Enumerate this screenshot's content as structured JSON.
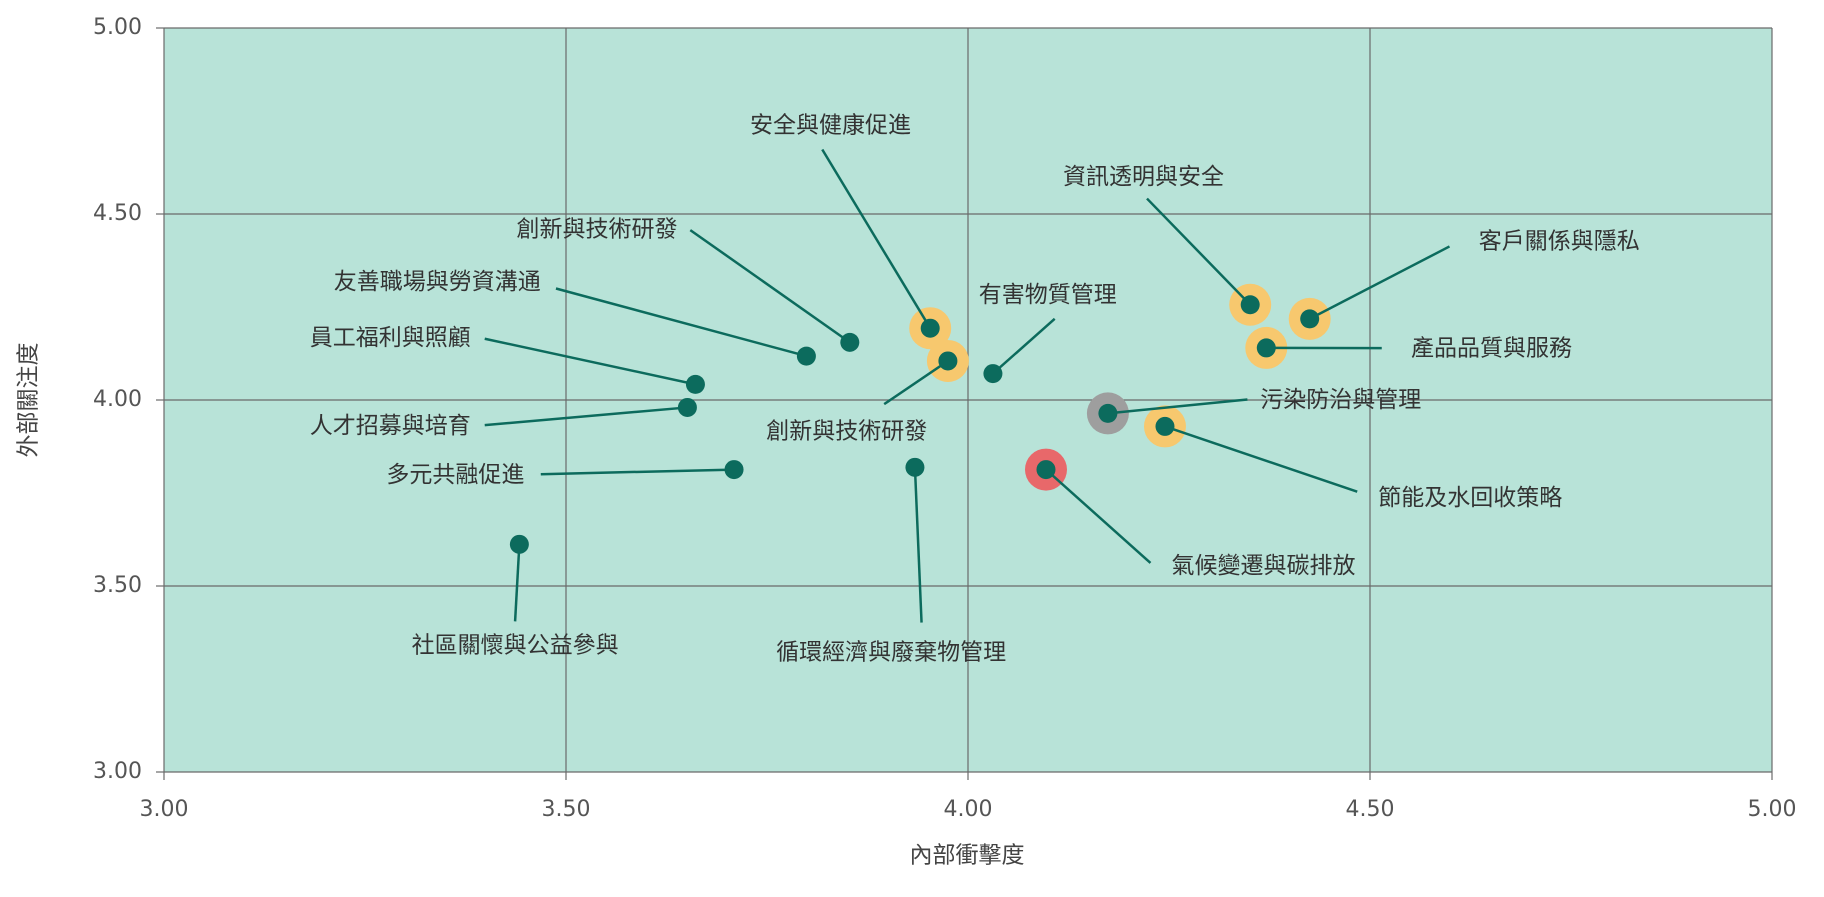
{
  "chart_data": {
    "type": "scatter",
    "x_label": "內部衝擊度",
    "y_label": "外部關注度",
    "xlim": [
      3,
      5
    ],
    "ylim": [
      3,
      5
    ],
    "xticks": [
      {
        "value": 3,
        "label": "3.00"
      },
      {
        "value": 3.5,
        "label": "3.50"
      },
      {
        "value": 4,
        "label": "4.00"
      },
      {
        "value": 4.5,
        "label": "4.50"
      },
      {
        "value": 5,
        "label": "5.00"
      }
    ],
    "yticks": [
      {
        "value": 3,
        "label": "3.00"
      },
      {
        "value": 3.5,
        "label": "3.50"
      },
      {
        "value": 4,
        "label": "4.00"
      },
      {
        "value": 4.5,
        "label": "4.50"
      },
      {
        "value": 5,
        "label": "5.00"
      }
    ],
    "grid": true,
    "background": "#b8e3d8",
    "color": "#0c6b5d",
    "points": [
      {
        "label": "安全與健康促進",
        "x": 3.953,
        "y": 4.193,
        "highlight": "#f7c86e"
      },
      {
        "label": "創新與技術研發",
        "x": 3.853,
        "y": 4.155
      },
      {
        "label": "友善職場與勞資溝通",
        "x": 3.799,
        "y": 4.118
      },
      {
        "label": "員工福利與照顧",
        "x": 3.661,
        "y": 4.042
      },
      {
        "label": "人才招募與培育",
        "x": 3.651,
        "y": 3.98
      },
      {
        "label": "多元共融促進",
        "x": 3.709,
        "y": 3.813
      },
      {
        "label": "社區關懷與公益參與",
        "x": 3.442,
        "y": 3.612
      },
      {
        "label": "創新與技術研發",
        "x": 3.975,
        "y": 4.105,
        "highlight": "#f7c86e"
      },
      {
        "label": "有害物質管理",
        "x": 4.031,
        "y": 4.071
      },
      {
        "label": "循環經濟與廢棄物管理",
        "x": 3.934,
        "y": 3.819
      },
      {
        "label": "資訊透明與安全",
        "x": 4.351,
        "y": 4.256,
        "highlight": "#f7c86e"
      },
      {
        "label": "客戶關係與隱私",
        "x": 4.425,
        "y": 4.218,
        "highlight": "#f7c86e"
      },
      {
        "label": "產品品質與服務",
        "x": 4.371,
        "y": 4.14,
        "highlight": "#f7c86e"
      },
      {
        "label": "污染防治與管理",
        "x": 4.174,
        "y": 3.964,
        "highlight": "#9e9e9e"
      },
      {
        "label": "節能及水回收策略",
        "x": 4.245,
        "y": 3.929,
        "highlight": "#f7c86e"
      },
      {
        "label": "氣候變遷與碳排放",
        "x": 4.097,
        "y": 3.813,
        "highlight": "#e8686a"
      }
    ]
  }
}
